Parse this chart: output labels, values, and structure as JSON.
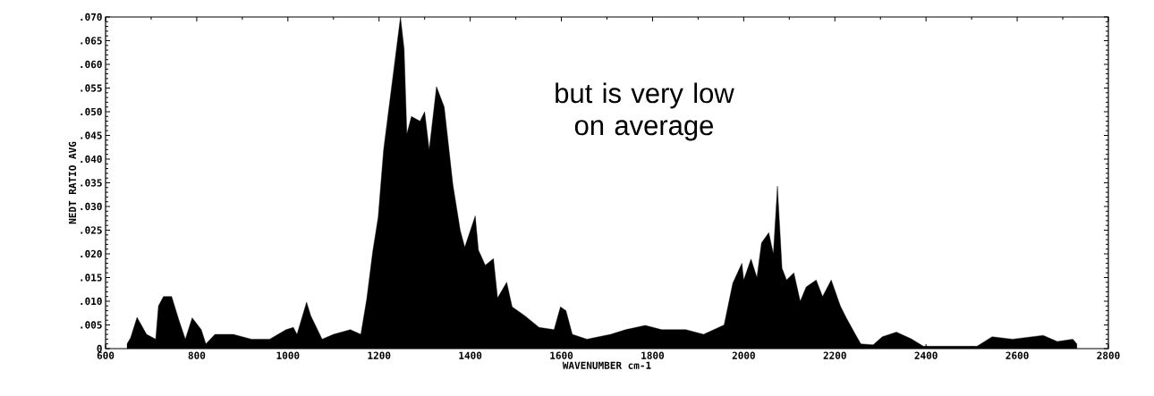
{
  "chart_data": {
    "type": "area",
    "color": "#000000",
    "xlabel": "WAVENUMBER cm-1",
    "ylabel": "NEDT RATIO AVG",
    "annotations": [
      "but is very low on average"
    ],
    "xlim": [
      600,
      2800
    ],
    "ylim": [
      0,
      0.07
    ],
    "xticks": [
      600,
      800,
      1000,
      1200,
      1400,
      1600,
      1800,
      2000,
      2200,
      2400,
      2600,
      2800
    ],
    "yticks": [
      {
        "value": 0,
        "label": "0"
      },
      {
        "value": 0.005,
        "label": ".005"
      },
      {
        "value": 0.01,
        "label": ".010"
      },
      {
        "value": 0.015,
        "label": ".015"
      },
      {
        "value": 0.02,
        "label": ".020"
      },
      {
        "value": 0.025,
        "label": ".025"
      },
      {
        "value": 0.03,
        "label": ".030"
      },
      {
        "value": 0.035,
        "label": ".035"
      },
      {
        "value": 0.04,
        "label": ".040"
      },
      {
        "value": 0.045,
        "label": ".045"
      },
      {
        "value": 0.05,
        "label": ".050"
      },
      {
        "value": 0.055,
        "label": ".055"
      },
      {
        "value": 0.06,
        "label": ".060"
      },
      {
        "value": 0.065,
        "label": ".065"
      },
      {
        "value": 0.07,
        "label": ".070"
      }
    ],
    "x": [
      647,
      655,
      669,
      690,
      710,
      716,
      727,
      745,
      761,
      775,
      790,
      810,
      820,
      840,
      880,
      920,
      960,
      996,
      1012,
      1020,
      1041,
      1050,
      1075,
      1100,
      1137,
      1160,
      1173,
      1186,
      1198,
      1210,
      1247,
      1255,
      1261,
      1271,
      1290,
      1300,
      1310,
      1326,
      1343,
      1362,
      1378,
      1388,
      1411,
      1418,
      1433,
      1451,
      1460,
      1480,
      1492,
      1519,
      1551,
      1584,
      1598,
      1610,
      1624,
      1656,
      1708,
      1741,
      1784,
      1820,
      1873,
      1912,
      1957,
      1976,
      1996,
      2000,
      2016,
      2029,
      2039,
      2055,
      2065,
      2074,
      2084,
      2094,
      2110,
      2124,
      2137,
      2159,
      2173,
      2192,
      2212,
      2225,
      2245,
      2257,
      2284,
      2304,
      2335,
      2369,
      2394,
      2461,
      2512,
      2545,
      2590,
      2657,
      2688,
      2722,
      2731
    ],
    "values": [
      0.001,
      0.0023,
      0.0066,
      0.003,
      0.002,
      0.009,
      0.011,
      0.011,
      0.006,
      0.002,
      0.0065,
      0.004,
      0.001,
      0.003,
      0.003,
      0.002,
      0.002,
      0.004,
      0.0045,
      0.003,
      0.0098,
      0.007,
      0.002,
      0.003,
      0.004,
      0.003,
      0.0105,
      0.0204,
      0.0277,
      0.042,
      0.07,
      0.0632,
      0.0453,
      0.049,
      0.048,
      0.05,
      0.042,
      0.0553,
      0.051,
      0.0346,
      0.025,
      0.0214,
      0.028,
      0.0208,
      0.0176,
      0.019,
      0.0107,
      0.014,
      0.0088,
      0.007,
      0.0045,
      0.004,
      0.0088,
      0.008,
      0.003,
      0.002,
      0.003,
      0.004,
      0.0049,
      0.004,
      0.004,
      0.003,
      0.005,
      0.0138,
      0.018,
      0.0145,
      0.0189,
      0.015,
      0.0223,
      0.0245,
      0.02,
      0.0343,
      0.017,
      0.0145,
      0.016,
      0.01,
      0.013,
      0.0145,
      0.011,
      0.0145,
      0.009,
      0.0065,
      0.003,
      0.001,
      0.0008,
      0.0025,
      0.0035,
      0.002,
      0.0005,
      0.0005,
      0.0005,
      0.0025,
      0.002,
      0.0028,
      0.0015,
      0.002,
      0.001
    ]
  }
}
